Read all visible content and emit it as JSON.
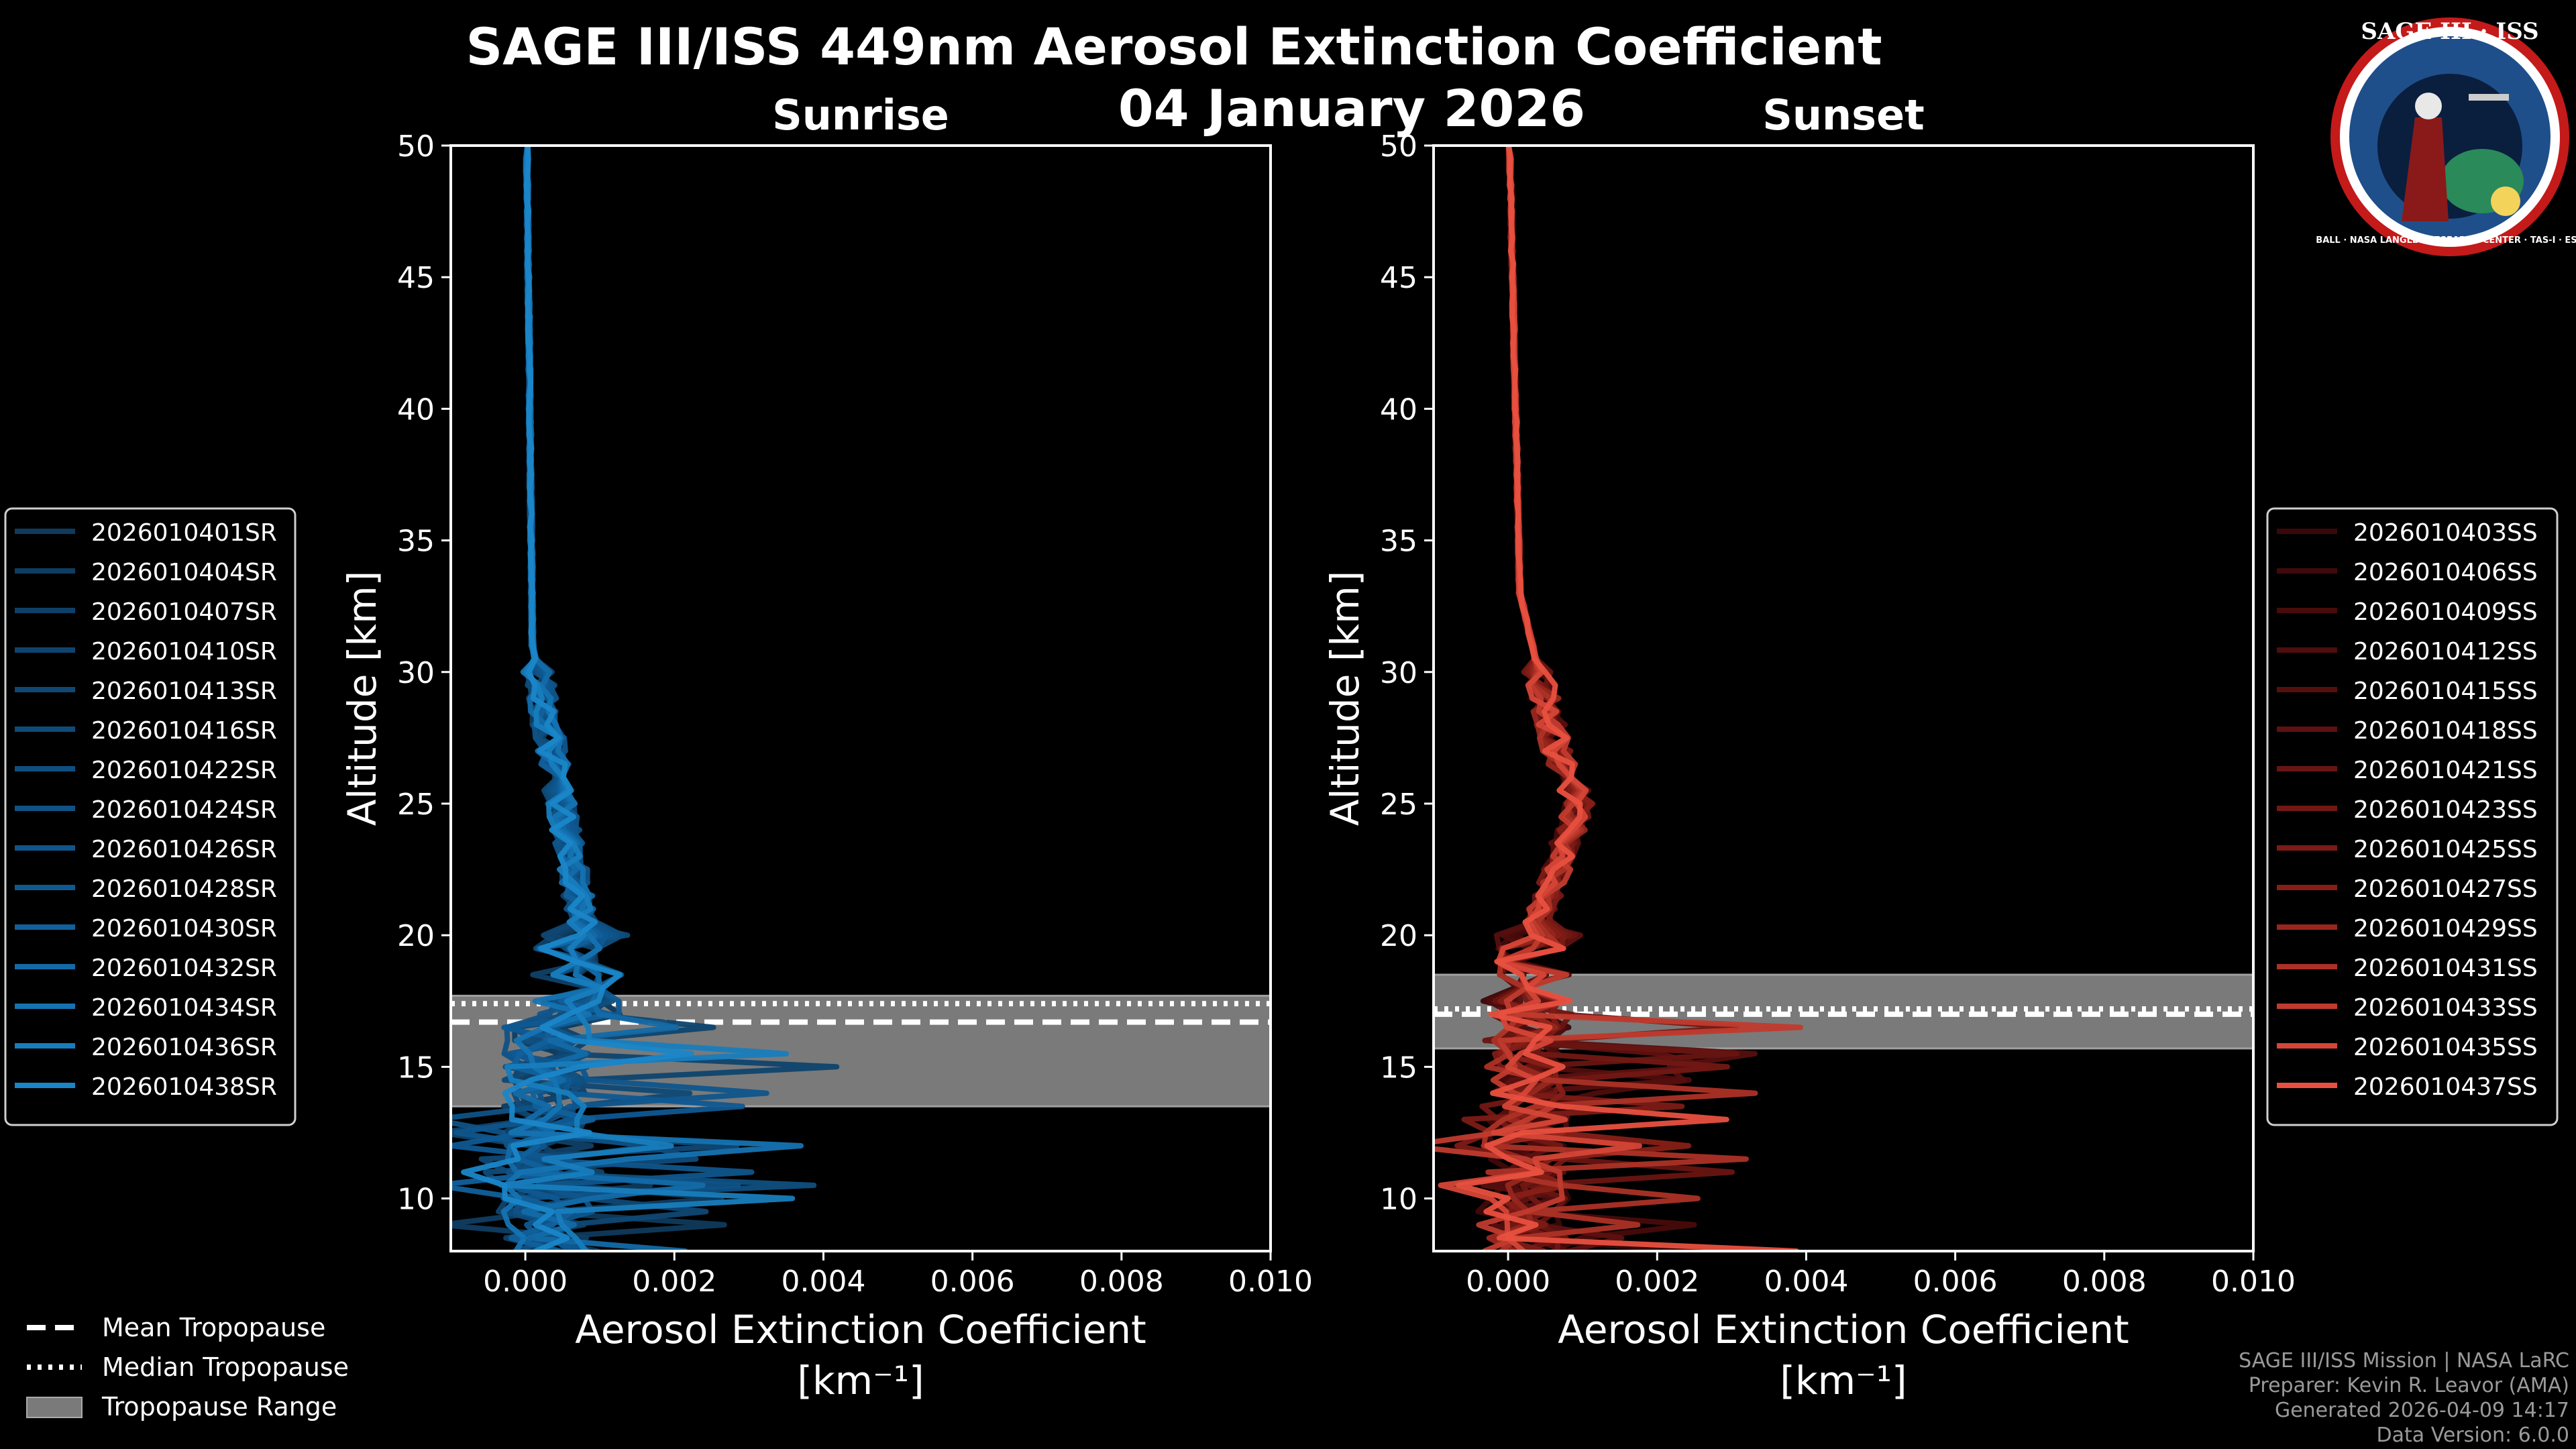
{
  "header": {
    "title_line1": "SAGE III/ISS 449nm Aerosol Extinction Coefficient",
    "title_line2": "04 January 2026"
  },
  "logo": {
    "text_top": "SAGE III · ISS",
    "text_ring": "BALL · NASA LANGLEY RESEARCH CENTER · TAS-I · ESA"
  },
  "footer": {
    "line1": "SAGE III/ISS Mission | NASA LaRC",
    "line2": "Preparer: Kevin R. Leavor (AMA)",
    "line3": "Generated 2026-04-09 14:17",
    "line4": "Data Version: 6.0.0"
  },
  "tropopause_legend": {
    "mean": "Mean Tropopause",
    "median": "Median Tropopause",
    "range": "Tropopause Range"
  },
  "chart_data": [
    {
      "type": "line",
      "title": "Sunrise",
      "xlabel": "Aerosol Extinction Coefficient",
      "xlabel_unit": "[km⁻¹]",
      "ylabel": "Altitude [km]",
      "xlim": [
        -0.001,
        0.01
      ],
      "ylim": [
        8,
        50
      ],
      "xticks": [
        0.0,
        0.002,
        0.004,
        0.006,
        0.008,
        0.01
      ],
      "xtick_labels": [
        "0.000",
        "0.002",
        "0.004",
        "0.006",
        "0.008",
        "0.010"
      ],
      "yticks": [
        10,
        15,
        20,
        25,
        30,
        35,
        40,
        45,
        50
      ],
      "tropopause": {
        "mean": 16.7,
        "median": 17.4,
        "range": [
          13.5,
          17.7
        ]
      },
      "legend_colors": [
        "#0f3a5c",
        "#0f4a78",
        "#0f5a94",
        "#1a86c8"
      ],
      "series": [
        {
          "name": "2026010401SR"
        },
        {
          "name": "2026010404SR"
        },
        {
          "name": "2026010407SR"
        },
        {
          "name": "2026010410SR"
        },
        {
          "name": "2026010413SR"
        },
        {
          "name": "2026010416SR"
        },
        {
          "name": "2026010422SR"
        },
        {
          "name": "2026010424SR"
        },
        {
          "name": "2026010426SR"
        },
        {
          "name": "2026010428SR"
        },
        {
          "name": "2026010430SR"
        },
        {
          "name": "2026010432SR"
        },
        {
          "name": "2026010434SR"
        },
        {
          "name": "2026010436SR"
        },
        {
          "name": "2026010438SR"
        }
      ]
    },
    {
      "type": "line",
      "title": "Sunset",
      "xlabel": "Aerosol Extinction Coefficient",
      "xlabel_unit": "[km⁻¹]",
      "ylabel": "Altitude [km]",
      "xlim": [
        -0.001,
        0.01
      ],
      "ylim": [
        8,
        50
      ],
      "xticks": [
        0.0,
        0.002,
        0.004,
        0.006,
        0.008,
        0.01
      ],
      "xtick_labels": [
        "0.000",
        "0.002",
        "0.004",
        "0.006",
        "0.008",
        "0.010"
      ],
      "yticks": [
        10,
        15,
        20,
        25,
        30,
        35,
        40,
        45,
        50
      ],
      "tropopause": {
        "mean": 17.0,
        "median": 17.2,
        "range": [
          15.7,
          18.5
        ]
      },
      "legend_colors": [
        "#3a0808",
        "#5a1010",
        "#8a2018",
        "#e8503f"
      ],
      "series": [
        {
          "name": "2026010403SS"
        },
        {
          "name": "2026010406SS"
        },
        {
          "name": "2026010409SS"
        },
        {
          "name": "2026010412SS"
        },
        {
          "name": "2026010415SS"
        },
        {
          "name": "2026010418SS"
        },
        {
          "name": "2026010421SS"
        },
        {
          "name": "2026010423SS"
        },
        {
          "name": "2026010425SS"
        },
        {
          "name": "2026010427SS"
        },
        {
          "name": "2026010429SS"
        },
        {
          "name": "2026010431SS"
        },
        {
          "name": "2026010433SS"
        },
        {
          "name": "2026010435SS"
        },
        {
          "name": "2026010437SS"
        }
      ]
    }
  ]
}
